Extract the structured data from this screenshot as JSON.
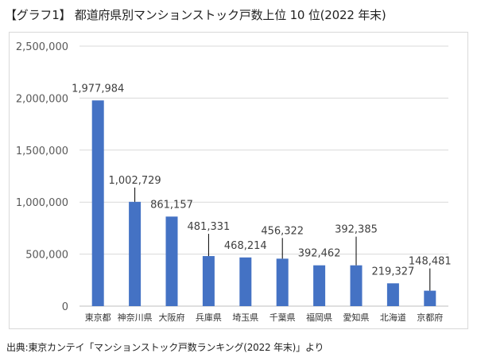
{
  "title": "【グラフ1】 都道府県別マンションストック戸数上位 10 位(2022 年末)",
  "source": "出典:東京カンテイ「マンションストック戸数ランキング(2022 年末)」より",
  "colors": {
    "bar": "#4472C4",
    "grid": "#d9d9d9",
    "axis": "#bfbfbf"
  },
  "chart_data": {
    "type": "bar",
    "title": "【グラフ1】 都道府県別マンションストック戸数上位 10 位(2022 年末)",
    "xlabel": "",
    "ylabel": "",
    "ylim": [
      0,
      2500000
    ],
    "grid": true,
    "legend": "none",
    "categories": [
      "東京都",
      "神奈川県",
      "大阪府",
      "兵庫県",
      "埼玉県",
      "千葉県",
      "福岡県",
      "愛知県",
      "北海道",
      "京都府"
    ],
    "values": [
      1977984,
      1002729,
      861157,
      481331,
      468214,
      456322,
      392462,
      392385,
      219327,
      148481
    ],
    "value_labels": [
      "1,977,984",
      "1,002,729",
      "861,157",
      "481,331",
      "468,214",
      "456,322",
      "392,462",
      "392,385",
      "219,327",
      "148,481"
    ],
    "y_ticks": [
      0,
      500000,
      1000000,
      1500000,
      2000000,
      2500000
    ],
    "y_tick_labels": [
      "0",
      "500,000",
      "1,000,000",
      "1,500,000",
      "2,000,000",
      "2,500,000"
    ]
  }
}
